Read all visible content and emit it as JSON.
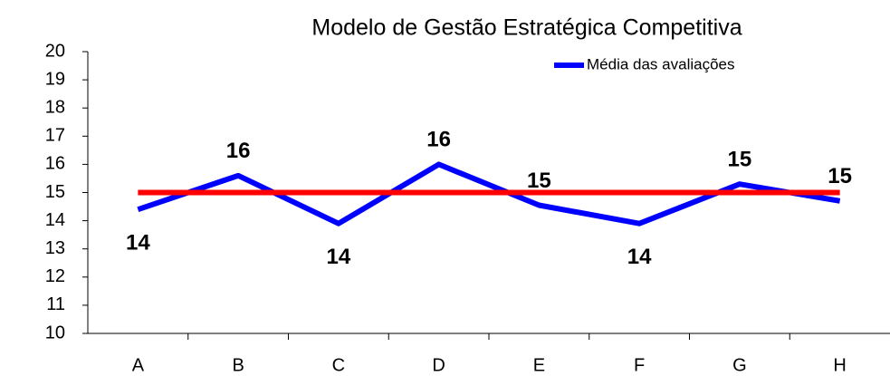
{
  "chart_data": {
    "type": "line",
    "title": "Modelo de Gestão Estratégica Competitiva",
    "categories": [
      "A",
      "B",
      "C",
      "D",
      "E",
      "F",
      "G",
      "H"
    ],
    "series": [
      {
        "name": "Média das avaliações",
        "color": "#0000ff",
        "values": [
          14.4,
          15.6,
          13.9,
          16.0,
          14.55,
          13.9,
          15.3,
          14.7
        ],
        "value_labels": [
          "14",
          "16",
          "14",
          "16",
          "15",
          "14",
          "15",
          "15"
        ]
      },
      {
        "color": "#ff0000",
        "values": [
          15,
          15,
          15,
          15,
          15,
          15,
          15,
          15
        ]
      }
    ],
    "ylim": [
      10,
      20
    ],
    "yticks": [
      10,
      11,
      12,
      13,
      14,
      15,
      16,
      17,
      18,
      19,
      20
    ],
    "legend": "top-right",
    "grid": false
  }
}
